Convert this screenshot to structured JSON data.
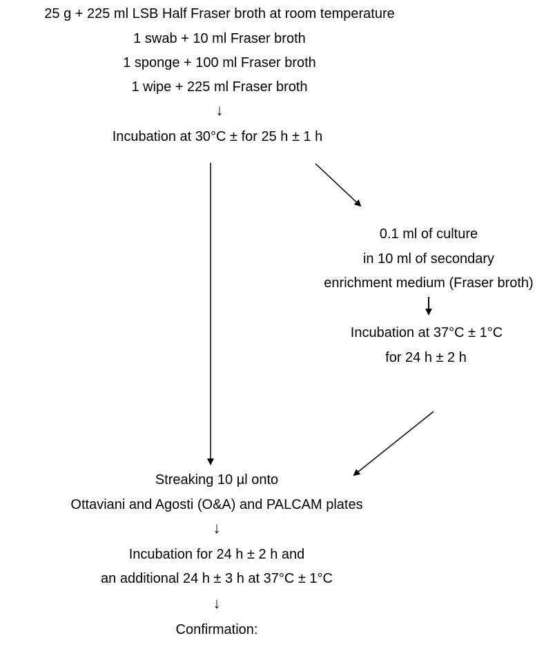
{
  "sample_prep": {
    "line1": "25 g + 225 ml LSB Half Fraser broth at room temperature",
    "line2": "1 swab + 10 ml Fraser broth",
    "line3": "1 sponge + 100 ml Fraser broth",
    "line4": "1 wipe + 225 ml Fraser broth"
  },
  "primary_incubation": "Incubation at 30°C ± for 25 h ± 1 h",
  "secondary_enrichment": {
    "line1": "0.1 ml of culture",
    "line2": "in 10 ml of secondary",
    "line3": "enrichment medium (Fraser broth)"
  },
  "secondary_incubation": {
    "line1": "Incubation at 37°C ± 1°C",
    "line2": "for 24 h ± 2 h"
  },
  "streaking": {
    "line1": "Streaking 10 µl onto",
    "line2": "Ottaviani and Agosti (O&A) and PALCAM plates"
  },
  "plate_incubation": {
    "line1": "Incubation for 24 h ± 2 h and",
    "line2": "an additional 24 h ± 3 h at 37°C ± 1°C"
  },
  "confirmation": "Confirmation:",
  "arrow_glyph": "↓",
  "bold_arrow_glyph": "🠋"
}
